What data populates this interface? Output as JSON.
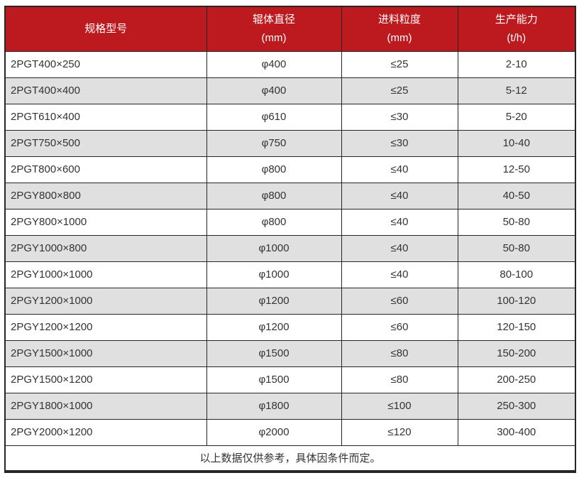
{
  "table": {
    "columns": [
      {
        "line1": "规格型号",
        "line2": ""
      },
      {
        "line1": "辊体直径",
        "line2": "(mm)"
      },
      {
        "line1": "进料粒度",
        "line2": "(mm)"
      },
      {
        "line1": "生产能力",
        "line2": "(t/h)"
      }
    ],
    "rows": [
      [
        "2PGT400×250",
        "φ400",
        "≤25",
        "2-10"
      ],
      [
        "2PGT400×400",
        "φ400",
        "≤25",
        "5-12"
      ],
      [
        "2PGT610×400",
        "φ610",
        "≤30",
        "5-20"
      ],
      [
        "2PGT750×500",
        "φ750",
        "≤30",
        "10-40"
      ],
      [
        "2PGT800×600",
        "φ800",
        "≤40",
        "12-50"
      ],
      [
        "2PGY800×800",
        "φ800",
        "≤40",
        "40-50"
      ],
      [
        "2PGY800×1000",
        "φ800",
        "≤40",
        "50-80"
      ],
      [
        "2PGY1000×800",
        "φ1000",
        "≤40",
        "50-80"
      ],
      [
        "2PGY1000×1000",
        "φ1000",
        "≤40",
        "80-100"
      ],
      [
        "2PGY1200×1000",
        "φ1200",
        "≤60",
        "100-120"
      ],
      [
        "2PGY1200×1200",
        "φ1200",
        "≤60",
        "120-150"
      ],
      [
        "2PGY1500×1000",
        "φ1500",
        "≤80",
        "150-200"
      ],
      [
        "2PGY1500×1200",
        "φ1500",
        "≤80",
        "200-250"
      ],
      [
        "2PGY1800×1000",
        "φ1800",
        "≤100",
        "250-300"
      ],
      [
        "2PGY2000×1200",
        "φ2000",
        "≤120",
        "300-400"
      ]
    ],
    "footnote": "以上数据仅供参考，具体因条件而定。"
  },
  "colors": {
    "header_bg": "#BC1A1E",
    "header_text": "#FFFFFF",
    "row_bg": "#FFFFFF",
    "row_alt_bg": "#E0E0E0",
    "border": "#262626",
    "body_text": "#333333"
  },
  "chart_data": {
    "type": "table",
    "title": "",
    "columns": [
      "规格型号",
      "辊体直径 (mm)",
      "进料粒度 (mm)",
      "生产能力 (t/h)"
    ],
    "rows": [
      [
        "2PGT400×250",
        "φ400",
        "≤25",
        "2-10"
      ],
      [
        "2PGT400×400",
        "φ400",
        "≤25",
        "5-12"
      ],
      [
        "2PGT610×400",
        "φ610",
        "≤30",
        "5-20"
      ],
      [
        "2PGT750×500",
        "φ750",
        "≤30",
        "10-40"
      ],
      [
        "2PGT800×600",
        "φ800",
        "≤40",
        "12-50"
      ],
      [
        "2PGY800×800",
        "φ800",
        "≤40",
        "40-50"
      ],
      [
        "2PGY800×1000",
        "φ800",
        "≤40",
        "50-80"
      ],
      [
        "2PGY1000×800",
        "φ1000",
        "≤40",
        "50-80"
      ],
      [
        "2PGY1000×1000",
        "φ1000",
        "≤40",
        "80-100"
      ],
      [
        "2PGY1200×1000",
        "φ1200",
        "≤60",
        "100-120"
      ],
      [
        "2PGY1200×1200",
        "φ1200",
        "≤60",
        "120-150"
      ],
      [
        "2PGY1500×1000",
        "φ1500",
        "≤80",
        "150-200"
      ],
      [
        "2PGY1500×1200",
        "φ1500",
        "≤80",
        "200-250"
      ],
      [
        "2PGY1800×1000",
        "φ1800",
        "≤100",
        "250-300"
      ],
      [
        "2PGY2000×1200",
        "φ2000",
        "≤120",
        "300-400"
      ]
    ],
    "footnote": "以上数据仅供参考，具体因条件而定。"
  }
}
